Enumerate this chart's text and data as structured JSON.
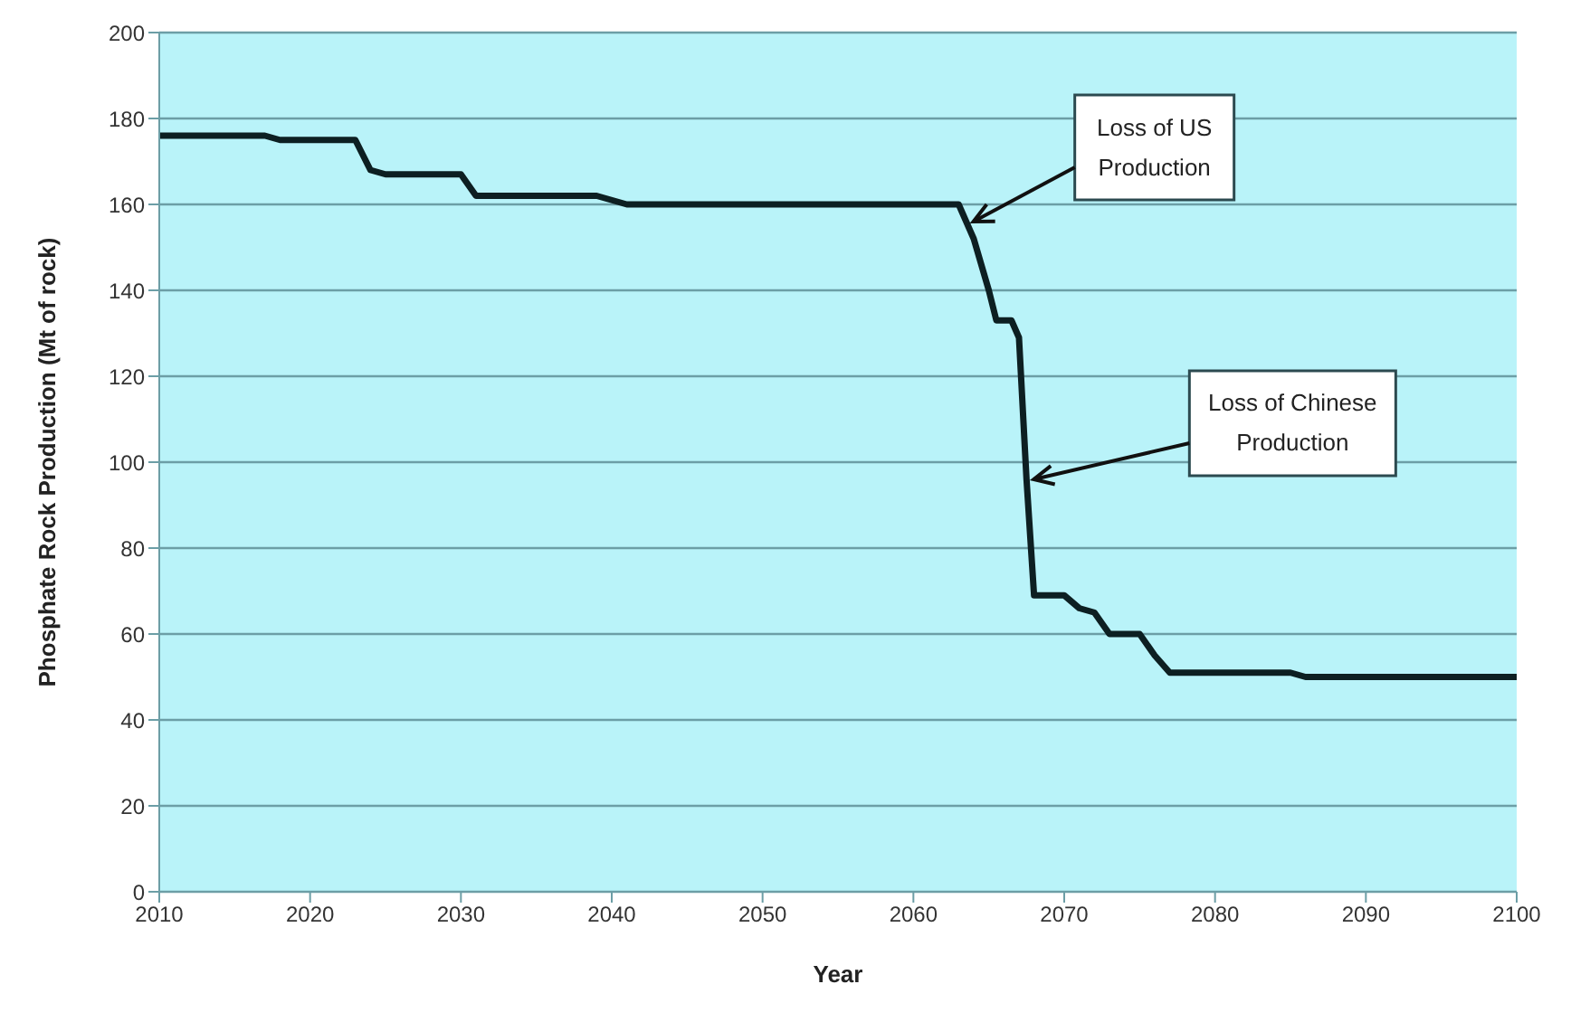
{
  "chart_data": {
    "type": "line",
    "xlabel": "Year",
    "ylabel": "Phosphate Rock Production (Mt of rock)",
    "x": [
      2010,
      2017,
      2018,
      2023,
      2024,
      2025,
      2030,
      2031,
      2039,
      2041,
      2063,
      2064,
      2065,
      2065.5,
      2066.5,
      2067,
      2067.5,
      2068,
      2070,
      2071,
      2072,
      2073,
      2075,
      2076,
      2077,
      2085,
      2086,
      2100
    ],
    "series": [
      {
        "color": "#0d1f22",
        "values": [
          176,
          176,
          175,
          175,
          168,
          167,
          167,
          162,
          162,
          160,
          160,
          152,
          140,
          133,
          133,
          129,
          96,
          69,
          69,
          66,
          65,
          60,
          60,
          55,
          51,
          51,
          50,
          50
        ]
      }
    ],
    "xlim": [
      2010,
      2100
    ],
    "xticks": [
      2010,
      2020,
      2030,
      2040,
      2050,
      2060,
      2070,
      2080,
      2090,
      2100
    ],
    "ylim": [
      0,
      200
    ],
    "yticks": [
      0,
      20,
      40,
      60,
      80,
      100,
      120,
      140,
      160,
      180,
      200
    ],
    "grid": "y",
    "marker": "none",
    "line_style": "solid",
    "legend": false,
    "annotations": [
      {
        "text": "Loss of US Production",
        "x": 2063.5,
        "y": 156
      },
      {
        "text": "Loss of Chinese Production",
        "x": 2067.5,
        "y": 96
      }
    ]
  }
}
